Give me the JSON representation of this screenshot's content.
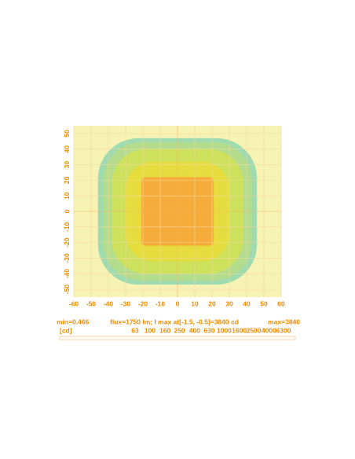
{
  "chart_data": {
    "type": "contour",
    "xlim": [
      -60,
      60
    ],
    "ylim": [
      -55,
      55
    ],
    "xticks": [
      -60,
      -50,
      -40,
      -30,
      -20,
      -10,
      0,
      10,
      20,
      30,
      40,
      50,
      60
    ],
    "yticks": [
      -50,
      -40,
      -30,
      -20,
      -10,
      0,
      10,
      20,
      30,
      40,
      50
    ],
    "grid": true,
    "contours": [
      {
        "level": 63,
        "color": "#9ad9b0",
        "halfwidth": 46,
        "halfheight": 47
      },
      {
        "level": 160,
        "color": "#b4dc8a",
        "halfwidth": 43,
        "halfheight": 44.5
      },
      {
        "level": 400,
        "color": "#cfe05a",
        "halfwidth": 38,
        "halfheight": 40
      },
      {
        "level": 1000,
        "color": "#e6dc3c",
        "halfwidth": 30,
        "halfheight": 32
      },
      {
        "level": 2500,
        "color": "#f7a93a",
        "halfwidth": 21,
        "halfheight": 22
      }
    ],
    "min_label": "min=0.466",
    "info": "flux=1750 lm; I max  at[-1.5, -0.5]=3840 cd",
    "max_label": "max=3840",
    "unit": "[cd]",
    "colorbar": {
      "scale": "log",
      "lim": [
        63,
        6300
      ],
      "ticks": [
        63,
        100,
        160,
        250,
        400,
        630,
        1000,
        1600,
        2500,
        4000,
        6300
      ]
    }
  }
}
